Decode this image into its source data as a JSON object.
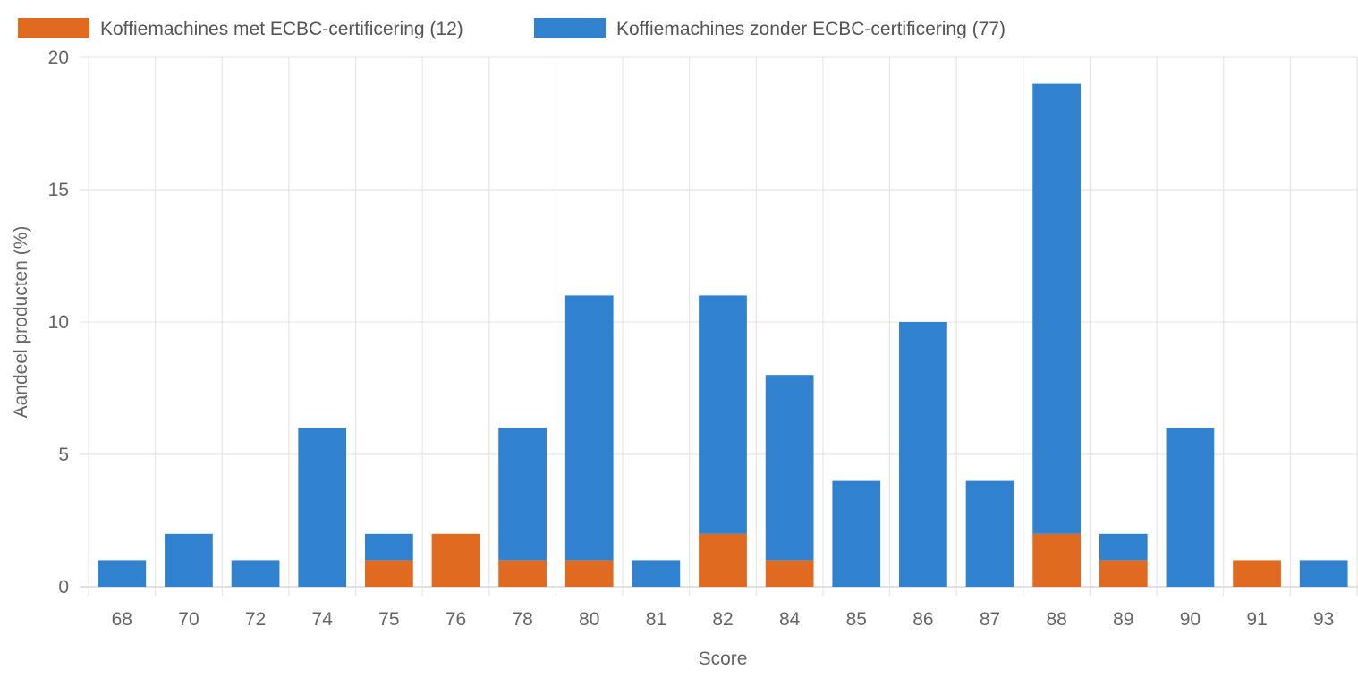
{
  "chart_data": {
    "type": "bar",
    "stacked": true,
    "xlabel": "Score",
    "ylabel": "Aandeel producten (%)",
    "ylim": [
      0,
      20
    ],
    "yticks": [
      "0",
      "5",
      "10",
      "15",
      "20"
    ],
    "grid": true,
    "legend_position": "top-left",
    "categories": [
      "68",
      "70",
      "72",
      "74",
      "75",
      "76",
      "78",
      "80",
      "81",
      "82",
      "84",
      "85",
      "86",
      "87",
      "88",
      "89",
      "90",
      "91",
      "93"
    ],
    "series": [
      {
        "name": "Koffiemachines met ECBC-certificering (12)",
        "color": "#e06b20",
        "values": [
          0,
          0,
          0,
          0,
          1,
          2,
          1,
          1,
          0,
          2,
          1,
          0,
          0,
          0,
          2,
          1,
          0,
          1,
          0
        ]
      },
      {
        "name": "Koffiemachines zonder ECBC-certificering (77)",
        "color": "#3182ce",
        "values": [
          1,
          2,
          1,
          6,
          1,
          0,
          5,
          10,
          1,
          9,
          7,
          4,
          10,
          4,
          17,
          1,
          6,
          0,
          1
        ]
      }
    ]
  }
}
